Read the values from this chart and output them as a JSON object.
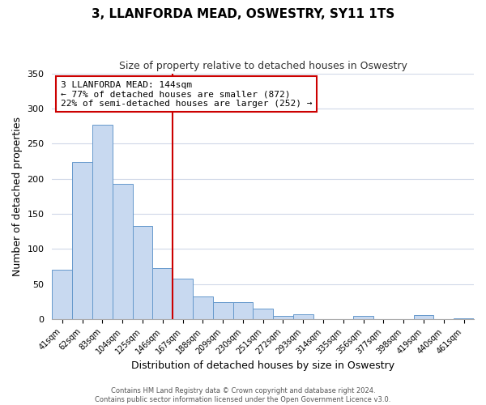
{
  "title": "3, LLANFORDA MEAD, OSWESTRY, SY11 1TS",
  "subtitle": "Size of property relative to detached houses in Oswestry",
  "xlabel": "Distribution of detached houses by size in Oswestry",
  "ylabel": "Number of detached properties",
  "bar_labels": [
    "41sqm",
    "62sqm",
    "83sqm",
    "104sqm",
    "125sqm",
    "146sqm",
    "167sqm",
    "188sqm",
    "209sqm",
    "230sqm",
    "251sqm",
    "272sqm",
    "293sqm",
    "314sqm",
    "335sqm",
    "356sqm",
    "377sqm",
    "398sqm",
    "419sqm",
    "440sqm",
    "461sqm"
  ],
  "bar_values": [
    70,
    224,
    277,
    193,
    133,
    73,
    58,
    33,
    24,
    25,
    15,
    5,
    7,
    0,
    0,
    5,
    0,
    0,
    6,
    0,
    1
  ],
  "bar_color": "#c8d9f0",
  "bar_edge_color": "#6699cc",
  "ylim": [
    0,
    350
  ],
  "yticks": [
    0,
    50,
    100,
    150,
    200,
    250,
    300,
    350
  ],
  "vline_x": 5.5,
  "vline_color": "#cc0000",
  "annotation_title": "3 LLANFORDA MEAD: 144sqm",
  "annotation_line1": "← 77% of detached houses are smaller (872)",
  "annotation_line2": "22% of semi-detached houses are larger (252) →",
  "annotation_box_color": "#ffffff",
  "annotation_box_edge": "#cc0000",
  "footer1": "Contains HM Land Registry data © Crown copyright and database right 2024.",
  "footer2": "Contains public sector information licensed under the Open Government Licence v3.0.",
  "background_color": "#ffffff",
  "grid_color": "#d0d8e8"
}
